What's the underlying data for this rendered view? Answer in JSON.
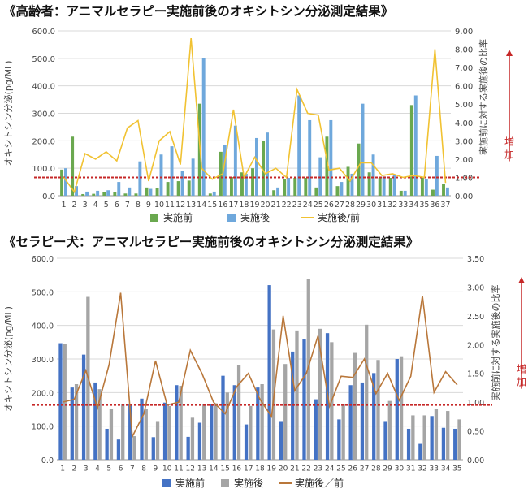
{
  "chart_data": [
    {
      "type": "bar",
      "title": "《高齢者：アニマルセラピー実施前後のオキシトシン分泌測定結果》",
      "ylabel": "オキシトシン分泌(pg/ML)",
      "y2label": "実施前に対する実施後の比率",
      "ylim": [
        0,
        600
      ],
      "y2lim": [
        0,
        9
      ],
      "yticks": [
        "0.0",
        "100.0",
        "200.0",
        "300.0",
        "400.0",
        "500.0",
        "600.0"
      ],
      "y2ticks": [
        "0.00",
        "1.00",
        "2.00",
        "3.00",
        "4.00",
        "5.00",
        "6.00",
        "7.00",
        "8.00",
        "9.00"
      ],
      "categories": [
        "1",
        "2",
        "3",
        "4",
        "5",
        "6",
        "7",
        "8",
        "9",
        "10",
        "11",
        "12",
        "13",
        "14",
        "15",
        "16",
        "17",
        "18",
        "19",
        "20",
        "21",
        "22",
        "23",
        "24",
        "25",
        "26",
        "27",
        "28",
        "29",
        "30",
        "31",
        "32",
        "33",
        "34",
        "35",
        "36",
        "37"
      ],
      "series": [
        {
          "name": "実施前",
          "kind": "bar",
          "axis": "left",
          "color": "#6aa84f",
          "values": [
            95,
            215,
            6,
            7,
            12,
            12,
            8,
            8,
            30,
            28,
            50,
            53,
            55,
            335,
            8,
            160,
            68,
            85,
            100,
            200,
            20,
            62,
            65,
            65,
            30,
            215,
            35,
            105,
            190,
            85,
            65,
            65,
            18,
            330,
            65,
            22,
            42
          ]
        },
        {
          "name": "実施後",
          "kind": "bar",
          "axis": "left",
          "color": "#6fa8dc",
          "values": [
            100,
            35,
            15,
            18,
            20,
            50,
            30,
            125,
            25,
            150,
            180,
            90,
            135,
            500,
            15,
            185,
            255,
            80,
            210,
            230,
            30,
            65,
            365,
            275,
            140,
            275,
            50,
            80,
            335,
            150,
            70,
            75,
            18,
            365,
            62,
            145,
            30
          ]
        },
        {
          "name": "実施後/前",
          "kind": "line",
          "axis": "right",
          "color": "#f1c232",
          "values": [
            1.0,
            0.2,
            2.3,
            2.0,
            2.4,
            1.9,
            3.7,
            4.1,
            0.8,
            3.0,
            3.5,
            1.7,
            8.6,
            1.5,
            0.9,
            1.2,
            4.7,
            1.0,
            2.1,
            1.2,
            1.5,
            1.0,
            5.8,
            4.5,
            4.4,
            1.4,
            1.5,
            0.8,
            1.8,
            1.8,
            1.1,
            1.2,
            1.0,
            1.1,
            1.0,
            8.0,
            0.7
          ]
        }
      ],
      "reference_ratio": 1.0,
      "increase_label": "増加"
    },
    {
      "type": "bar",
      "title": "《セラピー犬：アニマルセラピー実施前後のオキシトシン分泌測定結果》",
      "ylabel": "オキシトシン分泌(pg/ML)",
      "y2label": "実施前に対する実施後の比率",
      "ylim": [
        0,
        600
      ],
      "y2lim": [
        0,
        3.5
      ],
      "yticks": [
        "0.0",
        "100.0",
        "200.0",
        "300.0",
        "400.0",
        "500.0",
        "600.0"
      ],
      "y2ticks": [
        "0.00",
        "0.50",
        "1.00",
        "1.50",
        "2.00",
        "2.50",
        "3.00",
        "3.50"
      ],
      "categories": [
        "1",
        "2",
        "3",
        "4",
        "5",
        "6",
        "7",
        "8",
        "9",
        "10",
        "11",
        "12",
        "13",
        "14",
        "15",
        "16",
        "17",
        "18",
        "19",
        "20",
        "21",
        "22",
        "23",
        "24",
        "25",
        "26",
        "27",
        "28",
        "29",
        "30",
        "31",
        "32",
        "33",
        "34",
        "35"
      ],
      "series": [
        {
          "name": "実施前",
          "kind": "bar",
          "axis": "left",
          "color": "#4472c4",
          "values": [
            347,
            215,
            313,
            230,
            92,
            60,
            165,
            182,
            67,
            170,
            222,
            68,
            110,
            165,
            250,
            222,
            105,
            215,
            520,
            115,
            322,
            358,
            180,
            377,
            120,
            222,
            230,
            258,
            115,
            300,
            92,
            47,
            130,
            95,
            92
          ]
        },
        {
          "name": "実施後",
          "kind": "bar",
          "axis": "left",
          "color": "#a5a5a5",
          "values": [
            345,
            225,
            485,
            210,
            152,
            165,
            70,
            150,
            115,
            160,
            220,
            125,
            165,
            168,
            200,
            282,
            160,
            225,
            388,
            285,
            385,
            538,
            390,
            350,
            165,
            318,
            402,
            297,
            175,
            308,
            132,
            132,
            152,
            145,
            120
          ]
        },
        {
          "name": "実施後／前",
          "kind": "line",
          "axis": "right",
          "color": "#b9773a",
          "values": [
            1.0,
            1.05,
            1.55,
            0.9,
            1.65,
            2.9,
            0.4,
            0.8,
            1.72,
            0.95,
            1.0,
            1.9,
            1.5,
            1.0,
            0.8,
            1.27,
            1.5,
            1.05,
            0.75,
            2.5,
            1.2,
            1.5,
            2.15,
            0.93,
            1.45,
            1.43,
            1.75,
            1.15,
            1.5,
            1.03,
            1.45,
            2.85,
            1.17,
            1.53,
            1.3
          ]
        }
      ],
      "reference_ratio": 0.95,
      "increase_label": "増加"
    }
  ]
}
